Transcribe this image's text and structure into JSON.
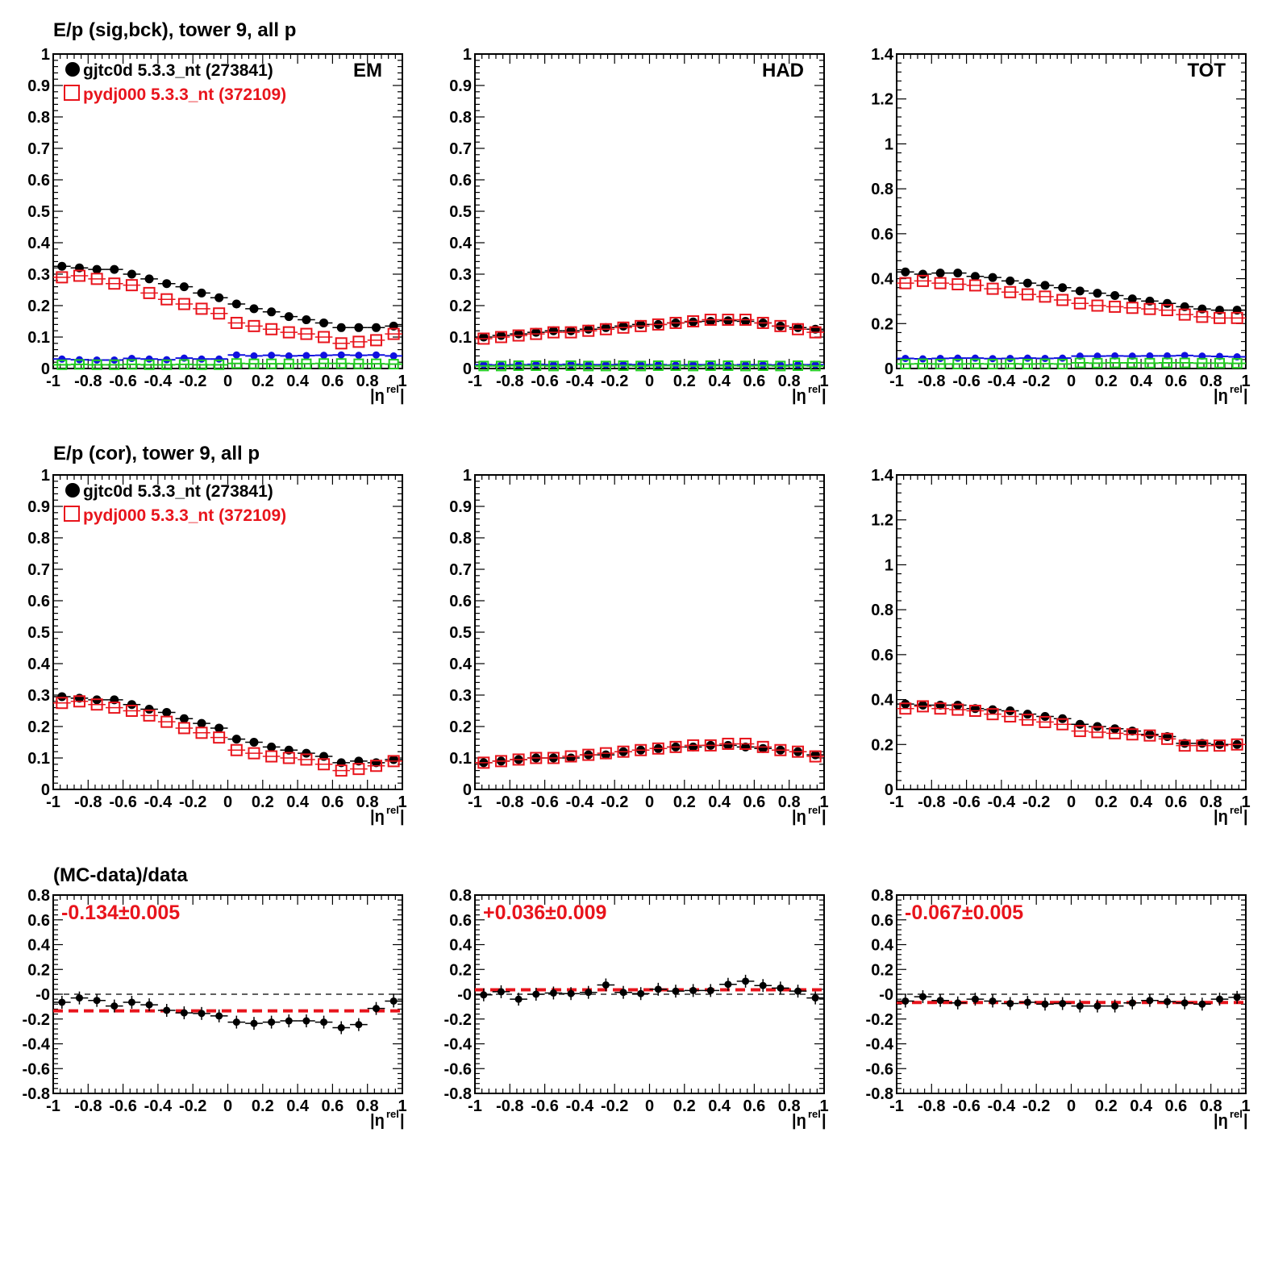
{
  "colors": {
    "data": "#000000",
    "mc": "#e8141c",
    "bck_data": "#1010e0",
    "bck_mc": "#22cc22",
    "fit": "#e8141c",
    "zero_line": "#000000"
  },
  "row_titles": [
    "E/p (sig,bck), tower 9, all p",
    "E/p (cor), tower 9, all p",
    "(MC-data)/data"
  ],
  "legend": {
    "data_label": "gjtc0d 5.3.3_nt (273841)",
    "mc_label": "pydj000 5.3.3_nt (372109)"
  },
  "xlabel_main": "|η",
  "xlabel_sup": "rel",
  "xlabel_end": "|",
  "chart_data": [
    {
      "id": "sig-em",
      "type": "scatter",
      "label": "EM",
      "xlim": [
        -1,
        1
      ],
      "ylim": [
        0,
        1
      ],
      "xticks": [
        "-1",
        "-0.8",
        "-0.6",
        "-0.4",
        "-0.2",
        "0",
        "0.2",
        "0.4",
        "0.6",
        "0.8",
        "1"
      ],
      "yticks": [
        "0",
        "0.1",
        "0.2",
        "0.3",
        "0.4",
        "0.5",
        "0.6",
        "0.7",
        "0.8",
        "0.9",
        "1"
      ],
      "x": [
        -0.95,
        -0.85,
        -0.75,
        -0.65,
        -0.55,
        -0.45,
        -0.35,
        -0.25,
        -0.15,
        -0.05,
        0.05,
        0.15,
        0.25,
        0.35,
        0.45,
        0.55,
        0.65,
        0.75,
        0.85,
        0.95
      ],
      "series": [
        {
          "name": "gjtc0d 5.3.3_nt (273841)",
          "style": "data",
          "values": [
            0.325,
            0.32,
            0.315,
            0.315,
            0.3,
            0.285,
            0.27,
            0.26,
            0.24,
            0.225,
            0.205,
            0.19,
            0.18,
            0.165,
            0.155,
            0.145,
            0.13,
            0.13,
            0.13,
            0.135
          ]
        },
        {
          "name": "pydj000 5.3.3_nt (372109)",
          "style": "mc",
          "values": [
            0.29,
            0.295,
            0.285,
            0.27,
            0.265,
            0.24,
            0.22,
            0.205,
            0.19,
            0.175,
            0.145,
            0.135,
            0.125,
            0.115,
            0.11,
            0.1,
            0.08,
            0.085,
            0.09,
            0.11
          ]
        },
        {
          "style": "bck_data",
          "values": [
            0.03,
            0.028,
            0.027,
            0.027,
            0.032,
            0.03,
            0.028,
            0.033,
            0.03,
            0.03,
            0.043,
            0.04,
            0.042,
            0.04,
            0.041,
            0.042,
            0.043,
            0.042,
            0.043,
            0.04
          ]
        },
        {
          "style": "bck_mc",
          "values": [
            0.012,
            0.013,
            0.012,
            0.012,
            0.013,
            0.012,
            0.012,
            0.013,
            0.012,
            0.012,
            0.016,
            0.015,
            0.015,
            0.015,
            0.015,
            0.016,
            0.016,
            0.015,
            0.015,
            0.014
          ]
        }
      ]
    },
    {
      "id": "sig-had",
      "type": "scatter",
      "label": "HAD",
      "xlim": [
        -1,
        1
      ],
      "ylim": [
        0,
        1
      ],
      "xticks": [
        "-1",
        "-0.8",
        "-0.6",
        "-0.4",
        "-0.2",
        "0",
        "0.2",
        "0.4",
        "0.6",
        "0.8",
        "1"
      ],
      "yticks": [
        "0",
        "0.1",
        "0.2",
        "0.3",
        "0.4",
        "0.5",
        "0.6",
        "0.7",
        "0.8",
        "0.9",
        "1"
      ],
      "x": [
        -0.95,
        -0.85,
        -0.75,
        -0.65,
        -0.55,
        -0.45,
        -0.35,
        -0.25,
        -0.15,
        -0.05,
        0.05,
        0.15,
        0.25,
        0.35,
        0.45,
        0.55,
        0.65,
        0.75,
        0.85,
        0.95
      ],
      "series": [
        {
          "name": "gjtc0d 5.3.3_nt (273841)",
          "style": "data",
          "values": [
            0.1,
            0.105,
            0.11,
            0.115,
            0.12,
            0.12,
            0.125,
            0.13,
            0.135,
            0.14,
            0.14,
            0.145,
            0.148,
            0.15,
            0.152,
            0.15,
            0.145,
            0.135,
            0.13,
            0.125
          ]
        },
        {
          "name": "pydj000 5.3.3_nt (372109)",
          "style": "mc",
          "values": [
            0.095,
            0.1,
            0.105,
            0.11,
            0.115,
            0.115,
            0.12,
            0.125,
            0.13,
            0.135,
            0.14,
            0.145,
            0.15,
            0.155,
            0.155,
            0.155,
            0.145,
            0.135,
            0.125,
            0.115
          ]
        },
        {
          "style": "bck_data",
          "values": [
            0.012,
            0.011,
            0.012,
            0.013,
            0.012,
            0.013,
            0.012,
            0.012,
            0.013,
            0.012,
            0.012,
            0.011,
            0.012,
            0.012,
            0.011,
            0.012,
            0.012,
            0.011,
            0.012,
            0.012
          ]
        },
        {
          "style": "bck_mc",
          "values": [
            0.008,
            0.008,
            0.009,
            0.009,
            0.008,
            0.009,
            0.008,
            0.008,
            0.009,
            0.008,
            0.009,
            0.009,
            0.008,
            0.009,
            0.009,
            0.008,
            0.009,
            0.008,
            0.009,
            0.008
          ]
        }
      ]
    },
    {
      "id": "sig-tot",
      "type": "scatter",
      "label": "TOT",
      "xlim": [
        -1,
        1
      ],
      "ylim": [
        0,
        1.4
      ],
      "xticks": [
        "-1",
        "-0.8",
        "-0.6",
        "-0.4",
        "-0.2",
        "0",
        "0.2",
        "0.4",
        "0.6",
        "0.8",
        "1"
      ],
      "yticks": [
        "0",
        "0.2",
        "0.4",
        "0.6",
        "0.8",
        "1",
        "1.2",
        "1.4"
      ],
      "x": [
        -0.95,
        -0.85,
        -0.75,
        -0.65,
        -0.55,
        -0.45,
        -0.35,
        -0.25,
        -0.15,
        -0.05,
        0.05,
        0.15,
        0.25,
        0.35,
        0.45,
        0.55,
        0.65,
        0.75,
        0.85,
        0.95
      ],
      "series": [
        {
          "name": "gjtc0d 5.3.3_nt (273841)",
          "style": "data",
          "values": [
            0.43,
            0.42,
            0.425,
            0.425,
            0.41,
            0.405,
            0.39,
            0.38,
            0.37,
            0.36,
            0.345,
            0.335,
            0.325,
            0.31,
            0.3,
            0.29,
            0.275,
            0.265,
            0.26,
            0.26
          ]
        },
        {
          "name": "pydj000 5.3.3_nt (372109)",
          "style": "mc",
          "values": [
            0.38,
            0.39,
            0.38,
            0.375,
            0.37,
            0.355,
            0.34,
            0.33,
            0.32,
            0.305,
            0.29,
            0.28,
            0.275,
            0.27,
            0.265,
            0.26,
            0.24,
            0.23,
            0.225,
            0.225
          ]
        },
        {
          "style": "bck_data",
          "values": [
            0.045,
            0.043,
            0.045,
            0.046,
            0.046,
            0.044,
            0.045,
            0.046,
            0.045,
            0.046,
            0.055,
            0.055,
            0.056,
            0.055,
            0.056,
            0.056,
            0.058,
            0.055,
            0.054,
            0.052
          ]
        },
        {
          "style": "bck_mc",
          "values": [
            0.02,
            0.021,
            0.02,
            0.02,
            0.021,
            0.02,
            0.021,
            0.02,
            0.021,
            0.02,
            0.025,
            0.024,
            0.025,
            0.025,
            0.024,
            0.025,
            0.025,
            0.024,
            0.024,
            0.023
          ]
        }
      ]
    },
    {
      "id": "cor-em",
      "type": "scatter",
      "xlim": [
        -1,
        1
      ],
      "ylim": [
        0,
        1
      ],
      "xticks": [
        "-1",
        "-0.8",
        "-0.6",
        "-0.4",
        "-0.2",
        "0",
        "0.2",
        "0.4",
        "0.6",
        "0.8",
        "1"
      ],
      "yticks": [
        "0",
        "0.1",
        "0.2",
        "0.3",
        "0.4",
        "0.5",
        "0.6",
        "0.7",
        "0.8",
        "0.9",
        "1"
      ],
      "x": [
        -0.95,
        -0.85,
        -0.75,
        -0.65,
        -0.55,
        -0.45,
        -0.35,
        -0.25,
        -0.15,
        -0.05,
        0.05,
        0.15,
        0.25,
        0.35,
        0.45,
        0.55,
        0.65,
        0.75,
        0.85,
        0.95
      ],
      "series": [
        {
          "name": "gjtc0d 5.3.3_nt (273841)",
          "style": "data",
          "values": [
            0.295,
            0.29,
            0.285,
            0.285,
            0.27,
            0.255,
            0.245,
            0.225,
            0.21,
            0.195,
            0.16,
            0.15,
            0.135,
            0.125,
            0.115,
            0.105,
            0.085,
            0.09,
            0.085,
            0.095
          ]
        },
        {
          "name": "pydj000 5.3.3_nt (372109)",
          "style": "mc",
          "values": [
            0.275,
            0.28,
            0.27,
            0.26,
            0.25,
            0.235,
            0.215,
            0.195,
            0.18,
            0.165,
            0.125,
            0.115,
            0.105,
            0.1,
            0.095,
            0.08,
            0.06,
            0.065,
            0.075,
            0.09
          ]
        }
      ]
    },
    {
      "id": "cor-had",
      "type": "scatter",
      "xlim": [
        -1,
        1
      ],
      "ylim": [
        0,
        1
      ],
      "xticks": [
        "-1",
        "-0.8",
        "-0.6",
        "-0.4",
        "-0.2",
        "0",
        "0.2",
        "0.4",
        "0.6",
        "0.8",
        "1"
      ],
      "yticks": [
        "0",
        "0.1",
        "0.2",
        "0.3",
        "0.4",
        "0.5",
        "0.6",
        "0.7",
        "0.8",
        "0.9",
        "1"
      ],
      "x": [
        -0.95,
        -0.85,
        -0.75,
        -0.65,
        -0.55,
        -0.45,
        -0.35,
        -0.25,
        -0.15,
        -0.05,
        0.05,
        0.15,
        0.25,
        0.35,
        0.45,
        0.55,
        0.65,
        0.75,
        0.85,
        0.95
      ],
      "series": [
        {
          "name": "gjtc0d 5.3.3_nt (273841)",
          "style": "data",
          "values": [
            0.085,
            0.09,
            0.095,
            0.1,
            0.1,
            0.1,
            0.11,
            0.11,
            0.12,
            0.125,
            0.13,
            0.135,
            0.135,
            0.14,
            0.14,
            0.135,
            0.13,
            0.125,
            0.12,
            0.11
          ]
        },
        {
          "name": "pydj000 5.3.3_nt (372109)",
          "style": "mc",
          "values": [
            0.085,
            0.09,
            0.095,
            0.1,
            0.1,
            0.105,
            0.11,
            0.115,
            0.12,
            0.125,
            0.13,
            0.135,
            0.14,
            0.14,
            0.145,
            0.145,
            0.135,
            0.125,
            0.12,
            0.105
          ]
        }
      ]
    },
    {
      "id": "cor-tot",
      "type": "scatter",
      "xlim": [
        -1,
        1
      ],
      "ylim": [
        0,
        1.4
      ],
      "xticks": [
        "-1",
        "-0.8",
        "-0.6",
        "-0.4",
        "-0.2",
        "0",
        "0.2",
        "0.4",
        "0.6",
        "0.8",
        "1"
      ],
      "yticks": [
        "0",
        "0.2",
        "0.4",
        "0.6",
        "0.8",
        "1",
        "1.2",
        "1.4"
      ],
      "x": [
        -0.95,
        -0.85,
        -0.75,
        -0.65,
        -0.55,
        -0.45,
        -0.35,
        -0.25,
        -0.15,
        -0.05,
        0.05,
        0.15,
        0.25,
        0.35,
        0.45,
        0.55,
        0.65,
        0.75,
        0.85,
        0.95
      ],
      "series": [
        {
          "name": "gjtc0d 5.3.3_nt (273841)",
          "style": "data",
          "values": [
            0.38,
            0.375,
            0.375,
            0.375,
            0.36,
            0.355,
            0.35,
            0.335,
            0.325,
            0.315,
            0.29,
            0.28,
            0.27,
            0.26,
            0.245,
            0.235,
            0.205,
            0.205,
            0.2,
            0.2
          ]
        },
        {
          "name": "pydj000 5.3.3_nt (372109)",
          "style": "mc",
          "values": [
            0.36,
            0.37,
            0.36,
            0.355,
            0.35,
            0.335,
            0.325,
            0.31,
            0.3,
            0.29,
            0.26,
            0.255,
            0.25,
            0.245,
            0.24,
            0.225,
            0.195,
            0.195,
            0.195,
            0.2
          ]
        }
      ]
    },
    {
      "id": "ratio-em",
      "type": "scatter",
      "xlim": [
        -1,
        1
      ],
      "ylim": [
        -0.8,
        0.8
      ],
      "xticks": [
        "-1",
        "-0.8",
        "-0.6",
        "-0.4",
        "-0.2",
        "0",
        "0.2",
        "0.4",
        "0.6",
        "0.8",
        "1"
      ],
      "yticks": [
        "-0.8",
        "-0.6",
        "-0.4",
        "-0.2",
        "-0",
        "0.2",
        "0.4",
        "0.6",
        "0.8"
      ],
      "fit_label": "-0.134±0.005",
      "fit_value": -0.134,
      "x": [
        -0.95,
        -0.85,
        -0.75,
        -0.65,
        -0.55,
        -0.45,
        -0.35,
        -0.25,
        -0.15,
        -0.05,
        0.05,
        0.15,
        0.25,
        0.35,
        0.45,
        0.55,
        0.65,
        0.75,
        0.85,
        0.95
      ],
      "series": [
        {
          "name": "(MC-data)/data",
          "style": "ratio",
          "values": [
            -0.065,
            -0.03,
            -0.05,
            -0.095,
            -0.065,
            -0.085,
            -0.13,
            -0.15,
            -0.155,
            -0.175,
            -0.225,
            -0.235,
            -0.225,
            -0.215,
            -0.215,
            -0.225,
            -0.27,
            -0.245,
            -0.115,
            -0.055
          ]
        }
      ]
    },
    {
      "id": "ratio-had",
      "type": "scatter",
      "xlim": [
        -1,
        1
      ],
      "ylim": [
        -0.8,
        0.8
      ],
      "xticks": [
        "-1",
        "-0.8",
        "-0.6",
        "-0.4",
        "-0.2",
        "0",
        "0.2",
        "0.4",
        "0.6",
        "0.8",
        "1"
      ],
      "yticks": [
        "-0.8",
        "-0.6",
        "-0.4",
        "-0.2",
        "-0",
        "0.2",
        "0.4",
        "0.6",
        "0.8"
      ],
      "fit_label": "+0.036±0.009",
      "fit_value": 0.036,
      "x": [
        -0.95,
        -0.85,
        -0.75,
        -0.65,
        -0.55,
        -0.45,
        -0.35,
        -0.25,
        -0.15,
        -0.05,
        0.05,
        0.15,
        0.25,
        0.35,
        0.45,
        0.55,
        0.65,
        0.75,
        0.85,
        0.95
      ],
      "series": [
        {
          "name": "(MC-data)/data",
          "style": "ratio",
          "values": [
            -0.005,
            0.02,
            -0.04,
            0.0,
            0.01,
            0.005,
            0.015,
            0.075,
            0.015,
            0.005,
            0.04,
            0.025,
            0.03,
            0.03,
            0.08,
            0.105,
            0.07,
            0.05,
            0.025,
            -0.03
          ]
        }
      ]
    },
    {
      "id": "ratio-tot",
      "type": "scatter",
      "xlim": [
        -1,
        1
      ],
      "ylim": [
        -0.8,
        0.8
      ],
      "xticks": [
        "-1",
        "-0.8",
        "-0.6",
        "-0.4",
        "-0.2",
        "0",
        "0.2",
        "0.4",
        "0.6",
        "0.8",
        "1"
      ],
      "yticks": [
        "-0.8",
        "-0.6",
        "-0.4",
        "-0.2",
        "-0",
        "0.2",
        "0.4",
        "0.6",
        "0.8"
      ],
      "fit_label": "-0.067±0.005",
      "fit_value": -0.067,
      "x": [
        -0.95,
        -0.85,
        -0.75,
        -0.65,
        -0.55,
        -0.45,
        -0.35,
        -0.25,
        -0.15,
        -0.05,
        0.05,
        0.15,
        0.25,
        0.35,
        0.45,
        0.55,
        0.65,
        0.75,
        0.85,
        0.95
      ],
      "series": [
        {
          "name": "(MC-data)/data",
          "style": "ratio",
          "values": [
            -0.055,
            -0.02,
            -0.05,
            -0.07,
            -0.04,
            -0.055,
            -0.075,
            -0.065,
            -0.08,
            -0.075,
            -0.095,
            -0.095,
            -0.095,
            -0.07,
            -0.05,
            -0.06,
            -0.07,
            -0.08,
            -0.04,
            -0.025
          ]
        }
      ]
    }
  ]
}
